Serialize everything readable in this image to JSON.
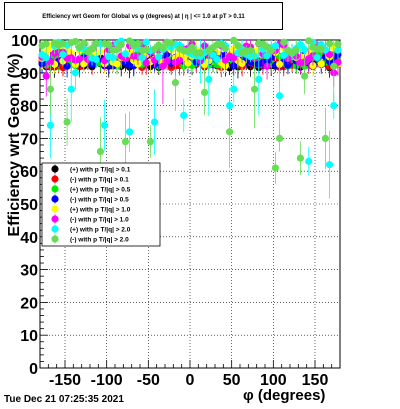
{
  "header": {
    "title": "Efficiency wrt Geom for Global vs φ (degrees) at | η | <= 1.0 at pT > 0.11"
  },
  "footer": {
    "timestamp": "Tue Dec 21 07:25:35 2021"
  },
  "chart_data": {
    "type": "scatter",
    "title": "Efficiency wrt Geom for Global vs φ (degrees) at | η | <= 1.0 at pT > 0.11",
    "xlabel": "φ (degrees)",
    "ylabel": "Efficiency wrt Geom (%)",
    "xlim": [
      -180,
      180
    ],
    "ylim": [
      0,
      100
    ],
    "xticks": [
      -150,
      -100,
      -50,
      0,
      50,
      100,
      150
    ],
    "yticks": [
      0,
      10,
      20,
      30,
      40,
      50,
      60,
      70,
      80,
      90,
      100
    ],
    "grid": true,
    "legend_position": "left-middle",
    "series": [
      {
        "name": "(+) with p T/|q| > 0.1",
        "color": "#000000",
        "base": 93,
        "jitter": 1.5,
        "dips": []
      },
      {
        "name": "(-) with p T/|q| > 0.1",
        "color": "#ff0000",
        "base": 93,
        "jitter": 1.5,
        "dips": []
      },
      {
        "name": "(+) with p T/|q| > 0.5",
        "color": "#00ee00",
        "base": 94,
        "jitter": 2,
        "dips": []
      },
      {
        "name": "(-) with p T/|q| > 0.5",
        "color": "#0000ff",
        "base": 94,
        "jitter": 2,
        "dips": []
      },
      {
        "name": "(+) with p T/|q| > 1.0",
        "color": "#ffff00",
        "base": 95,
        "jitter": 3,
        "dips": []
      },
      {
        "name": "(-) with p T/|q| > 1.0",
        "color": "#ff00ff",
        "base": 96,
        "jitter": 3,
        "dips": [
          [
            -175,
            89
          ],
          [
            -35,
            92
          ],
          [
            90,
            92
          ],
          [
            170,
            90
          ]
        ]
      },
      {
        "name": "(+) with p T/|q| > 2.0",
        "color": "#00ffff",
        "base": 97,
        "jitter": 3,
        "dips": [
          [
            -170,
            74
          ],
          [
            -145,
            85
          ],
          [
            -138,
            90
          ],
          [
            -105,
            74
          ],
          [
            -75,
            72
          ],
          [
            -45,
            75
          ],
          [
            -12,
            68
          ],
          [
            -8,
            77
          ],
          [
            10,
            95
          ],
          [
            20,
            88
          ],
          [
            45,
            80
          ],
          [
            52,
            85
          ],
          [
            80,
            88
          ],
          [
            105,
            83
          ],
          [
            140,
            63
          ],
          [
            165,
            62
          ],
          [
            168,
            80
          ]
        ]
      },
      {
        "name": "(-) with p T/|q| > 2.0",
        "color": "#66dd55",
        "base": 98,
        "jitter": 2,
        "dips": [
          [
            -172,
            80
          ],
          [
            -170,
            85
          ],
          [
            -150,
            75
          ],
          [
            -110,
            66
          ],
          [
            -80,
            63
          ],
          [
            -78,
            69
          ],
          [
            -50,
            69
          ],
          [
            -20,
            87
          ],
          [
            15,
            84
          ],
          [
            45,
            72
          ],
          [
            75,
            85
          ],
          [
            100,
            61
          ],
          [
            103,
            70
          ],
          [
            132,
            64
          ],
          [
            135,
            89
          ],
          [
            160,
            70
          ],
          [
            172,
            92
          ]
        ]
      }
    ]
  }
}
